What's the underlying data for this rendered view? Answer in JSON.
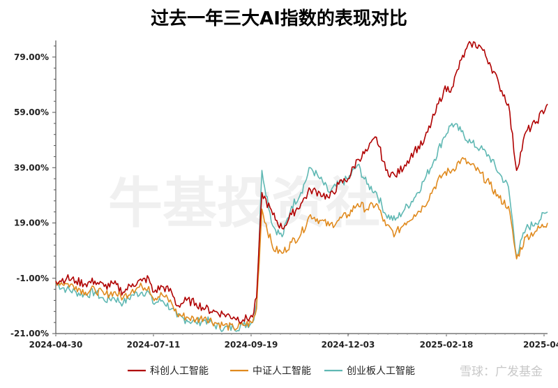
{
  "chart_data": {
    "type": "line",
    "title": "过去一年三大AI指数的表现对比",
    "xlabel": "",
    "ylabel": "",
    "ylim": [
      -21,
      85
    ],
    "yticks": [
      "79.00%",
      "59.00%",
      "39.00%",
      "19.00%",
      "-1.00%",
      "-21.00%"
    ],
    "ytick_values": [
      79,
      59,
      39,
      19,
      -1,
      -21
    ],
    "xticks": [
      "2024-04-30",
      "2024-07-11",
      "2024-09-19",
      "2024-12-03",
      "2025-02-18",
      "2025-04-"
    ],
    "x_start": "2024-04-30",
    "x_end": "2025-04-30",
    "legend_position": "bottom",
    "watermark": "牛基投资社",
    "credit": "雪球：广发基金",
    "series": [
      {
        "name": "科创人工智能",
        "color": "#b00000",
        "points": [
          [
            "2024-04-30",
            -2
          ],
          [
            "2024-05-08",
            -1
          ],
          [
            "2024-05-15",
            -2
          ],
          [
            "2024-05-22",
            -3
          ],
          [
            "2024-05-29",
            -2
          ],
          [
            "2024-06-05",
            -4
          ],
          [
            "2024-06-12",
            -3
          ],
          [
            "2024-06-19",
            -6
          ],
          [
            "2024-06-26",
            -3
          ],
          [
            "2024-07-03",
            -2
          ],
          [
            "2024-07-08",
            -1
          ],
          [
            "2024-07-11",
            -6
          ],
          [
            "2024-07-18",
            -4
          ],
          [
            "2024-07-25",
            -6
          ],
          [
            "2024-07-29",
            -11
          ],
          [
            "2024-08-05",
            -9
          ],
          [
            "2024-08-12",
            -10
          ],
          [
            "2024-08-19",
            -12
          ],
          [
            "2024-08-26",
            -13
          ],
          [
            "2024-09-02",
            -14
          ],
          [
            "2024-09-09",
            -15
          ],
          [
            "2024-09-16",
            -16
          ],
          [
            "2024-09-23",
            -15
          ],
          [
            "2024-09-26",
            -8
          ],
          [
            "2024-09-30",
            30
          ],
          [
            "2024-10-08",
            22
          ],
          [
            "2024-10-15",
            17
          ],
          [
            "2024-10-22",
            22
          ],
          [
            "2024-10-29",
            26
          ],
          [
            "2024-11-05",
            31
          ],
          [
            "2024-11-12",
            30
          ],
          [
            "2024-11-19",
            28
          ],
          [
            "2024-11-26",
            33
          ],
          [
            "2024-12-03",
            35
          ],
          [
            "2024-12-10",
            42
          ],
          [
            "2024-12-17",
            45
          ],
          [
            "2024-12-24",
            50
          ],
          [
            "2024-12-31",
            38
          ],
          [
            "2025-01-07",
            36
          ],
          [
            "2025-01-14",
            40
          ],
          [
            "2025-01-21",
            45
          ],
          [
            "2025-01-28",
            48
          ],
          [
            "2025-02-05",
            58
          ],
          [
            "2025-02-12",
            67
          ],
          [
            "2025-02-18",
            68
          ],
          [
            "2025-02-25",
            78
          ],
          [
            "2025-03-04",
            84
          ],
          [
            "2025-03-11",
            83
          ],
          [
            "2025-03-18",
            77
          ],
          [
            "2025-03-25",
            69
          ],
          [
            "2025-04-01",
            62
          ],
          [
            "2025-04-07",
            38
          ],
          [
            "2025-04-14",
            52
          ],
          [
            "2025-04-21",
            55
          ],
          [
            "2025-04-30",
            62
          ]
        ]
      },
      {
        "name": "中证人工智能",
        "color": "#e08a1e",
        "points": [
          [
            "2024-04-30",
            -2
          ],
          [
            "2024-05-08",
            -3
          ],
          [
            "2024-05-15",
            -4
          ],
          [
            "2024-05-22",
            -6
          ],
          [
            "2024-05-29",
            -5
          ],
          [
            "2024-06-05",
            -7
          ],
          [
            "2024-06-12",
            -6
          ],
          [
            "2024-06-19",
            -8
          ],
          [
            "2024-06-26",
            -5
          ],
          [
            "2024-07-03",
            -4
          ],
          [
            "2024-07-08",
            -4
          ],
          [
            "2024-07-11",
            -8
          ],
          [
            "2024-07-18",
            -7
          ],
          [
            "2024-07-25",
            -10
          ],
          [
            "2024-07-29",
            -14
          ],
          [
            "2024-08-05",
            -15
          ],
          [
            "2024-08-12",
            -16
          ],
          [
            "2024-08-19",
            -15
          ],
          [
            "2024-08-26",
            -17
          ],
          [
            "2024-09-02",
            -18
          ],
          [
            "2024-09-09",
            -19
          ],
          [
            "2024-09-16",
            -18
          ],
          [
            "2024-09-23",
            -17
          ],
          [
            "2024-09-26",
            -12
          ],
          [
            "2024-09-30",
            24
          ],
          [
            "2024-10-08",
            10
          ],
          [
            "2024-10-15",
            8
          ],
          [
            "2024-10-22",
            12
          ],
          [
            "2024-10-29",
            15
          ],
          [
            "2024-11-05",
            22
          ],
          [
            "2024-11-12",
            20
          ],
          [
            "2024-11-19",
            18
          ],
          [
            "2024-11-26",
            20
          ],
          [
            "2024-12-03",
            22
          ],
          [
            "2024-12-10",
            26
          ],
          [
            "2024-12-17",
            24
          ],
          [
            "2024-12-24",
            26
          ],
          [
            "2024-12-31",
            18
          ],
          [
            "2025-01-07",
            15
          ],
          [
            "2025-01-14",
            19
          ],
          [
            "2025-01-21",
            22
          ],
          [
            "2025-01-28",
            25
          ],
          [
            "2025-02-05",
            32
          ],
          [
            "2025-02-12",
            37
          ],
          [
            "2025-02-18",
            38
          ],
          [
            "2025-02-25",
            42
          ],
          [
            "2025-03-04",
            40
          ],
          [
            "2025-03-11",
            37
          ],
          [
            "2025-03-18",
            33
          ],
          [
            "2025-03-25",
            28
          ],
          [
            "2025-04-01",
            25
          ],
          [
            "2025-04-07",
            6
          ],
          [
            "2025-04-14",
            14
          ],
          [
            "2025-04-21",
            16
          ],
          [
            "2025-04-30",
            19
          ]
        ]
      },
      {
        "name": "创业板人工智能",
        "color": "#5fb8b3",
        "points": [
          [
            "2024-04-30",
            -3
          ],
          [
            "2024-05-08",
            -5
          ],
          [
            "2024-05-15",
            -6
          ],
          [
            "2024-05-22",
            -7
          ],
          [
            "2024-05-29",
            -6
          ],
          [
            "2024-06-05",
            -9
          ],
          [
            "2024-06-12",
            -8
          ],
          [
            "2024-06-19",
            -10
          ],
          [
            "2024-06-26",
            -7
          ],
          [
            "2024-07-03",
            -6
          ],
          [
            "2024-07-08",
            -6
          ],
          [
            "2024-07-11",
            -10
          ],
          [
            "2024-07-18",
            -9
          ],
          [
            "2024-07-25",
            -12
          ],
          [
            "2024-07-29",
            -15
          ],
          [
            "2024-08-05",
            -16
          ],
          [
            "2024-08-12",
            -17
          ],
          [
            "2024-08-19",
            -16
          ],
          [
            "2024-08-26",
            -18
          ],
          [
            "2024-09-02",
            -19
          ],
          [
            "2024-09-09",
            -19
          ],
          [
            "2024-09-16",
            -18
          ],
          [
            "2024-09-23",
            -17
          ],
          [
            "2024-09-26",
            -10
          ],
          [
            "2024-09-30",
            38
          ],
          [
            "2024-10-08",
            18
          ],
          [
            "2024-10-15",
            14
          ],
          [
            "2024-10-22",
            25
          ],
          [
            "2024-10-29",
            30
          ],
          [
            "2024-11-05",
            39
          ],
          [
            "2024-11-12",
            35
          ],
          [
            "2024-11-19",
            30
          ],
          [
            "2024-11-26",
            33
          ],
          [
            "2024-12-03",
            35
          ],
          [
            "2024-12-10",
            40
          ],
          [
            "2024-12-17",
            33
          ],
          [
            "2024-12-24",
            30
          ],
          [
            "2024-12-31",
            22
          ],
          [
            "2025-01-07",
            20
          ],
          [
            "2025-01-14",
            24
          ],
          [
            "2025-01-21",
            28
          ],
          [
            "2025-01-28",
            34
          ],
          [
            "2025-02-05",
            42
          ],
          [
            "2025-02-12",
            50
          ],
          [
            "2025-02-18",
            55
          ],
          [
            "2025-02-25",
            52
          ],
          [
            "2025-03-04",
            48
          ],
          [
            "2025-03-11",
            46
          ],
          [
            "2025-03-18",
            43
          ],
          [
            "2025-03-25",
            37
          ],
          [
            "2025-04-01",
            32
          ],
          [
            "2025-04-07",
            7
          ],
          [
            "2025-04-14",
            17
          ],
          [
            "2025-04-21",
            19
          ],
          [
            "2025-04-30",
            23
          ]
        ]
      }
    ]
  }
}
